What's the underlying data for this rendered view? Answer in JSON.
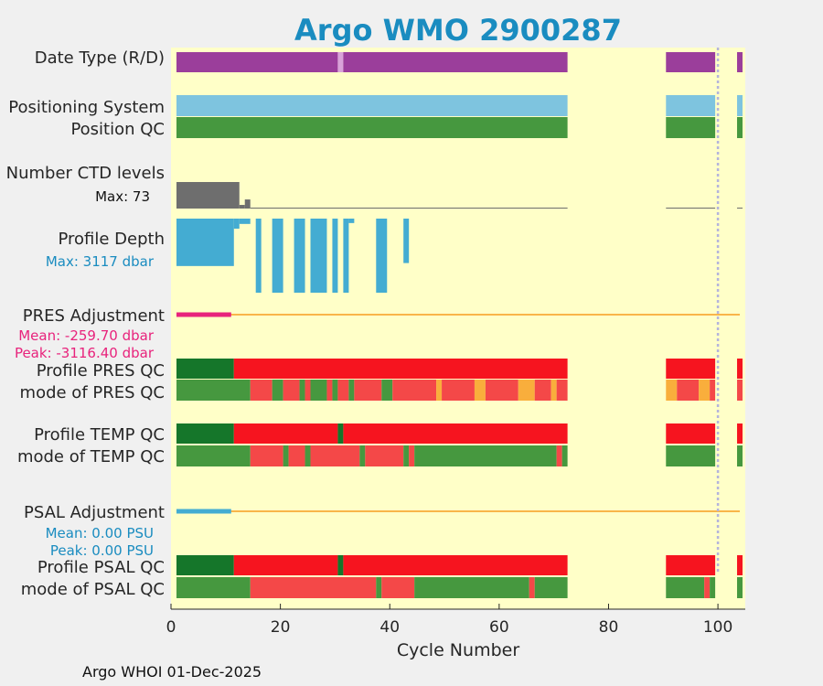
{
  "chart_data": {
    "type": "bar",
    "title": "Argo WMO 2900287",
    "xlabel": "Cycle Number",
    "xlim": [
      0,
      105
    ],
    "xticks": [
      0,
      20,
      40,
      60,
      80,
      100
    ],
    "marker_cycle": 100,
    "colors": {
      "plot_bg": "#ffffc8",
      "realtime": "#9b3e9b",
      "delayed": "#d9a3d9",
      "positioning": "#7ec4df",
      "good": "#46983f",
      "good_dark": "#15762a",
      "bad": "#f6141f",
      "bad_light": "#f44848",
      "probably_good": "#f9ae3c",
      "gray": "#6e6e6e",
      "depth": "#44acd2",
      "pres_adj": "#e8237c",
      "psal_adj": "#44acd2",
      "adj_line": "#f9b54a",
      "marker": "#b4b4dc"
    },
    "rows": [
      {
        "label": "Date Type (R/D)",
        "segments": [
          [
            1,
            30.5,
            "realtime"
          ],
          [
            30.5,
            31.5,
            "delayed"
          ],
          [
            31.5,
            72.5,
            "realtime"
          ],
          [
            90.5,
            99.5,
            "realtime"
          ],
          [
            103.5,
            104.5,
            "realtime"
          ]
        ]
      },
      {
        "label": "Positioning System",
        "segments": [
          [
            1,
            72.5,
            "positioning"
          ],
          [
            90.5,
            99.5,
            "positioning"
          ],
          [
            103.5,
            104.5,
            "positioning"
          ]
        ]
      },
      {
        "label": "Position QC",
        "segments": [
          [
            1,
            72.5,
            "good"
          ],
          [
            90.5,
            99.5,
            "good"
          ],
          [
            103.5,
            104.5,
            "good"
          ]
        ]
      },
      {
        "label": "Profile PRES QC",
        "segments": [
          [
            1,
            11.5,
            "good_dark"
          ],
          [
            11.5,
            72.5,
            "bad"
          ],
          [
            90.5,
            99.5,
            "bad"
          ],
          [
            103.5,
            104.5,
            "bad"
          ]
        ]
      },
      {
        "label": "mode of PRES QC",
        "segments": [
          [
            1,
            14.5,
            "good"
          ],
          [
            14.5,
            18.5,
            "bad_light"
          ],
          [
            18.5,
            20.5,
            "good"
          ],
          [
            20.5,
            23.5,
            "bad_light"
          ],
          [
            23.5,
            24.5,
            "good"
          ],
          [
            24.5,
            25.5,
            "bad_light"
          ],
          [
            25.5,
            28.5,
            "good"
          ],
          [
            28.5,
            29.5,
            "bad_light"
          ],
          [
            29.5,
            30.5,
            "good"
          ],
          [
            30.5,
            32.5,
            "bad_light"
          ],
          [
            32.5,
            33.5,
            "good"
          ],
          [
            33.5,
            38.5,
            "bad_light"
          ],
          [
            38.5,
            40.5,
            "good"
          ],
          [
            40.5,
            48.5,
            "bad_light"
          ],
          [
            48.5,
            49.5,
            "probably_good"
          ],
          [
            49.5,
            55.5,
            "bad_light"
          ],
          [
            55.5,
            57.5,
            "probably_good"
          ],
          [
            57.5,
            63.5,
            "bad_light"
          ],
          [
            63.5,
            66.5,
            "probably_good"
          ],
          [
            66.5,
            69.5,
            "bad_light"
          ],
          [
            69.5,
            70.5,
            "probably_good"
          ],
          [
            70.5,
            72.5,
            "bad_light"
          ],
          [
            90.5,
            92.5,
            "probably_good"
          ],
          [
            92.5,
            96.5,
            "bad_light"
          ],
          [
            96.5,
            98.5,
            "probably_good"
          ],
          [
            98.5,
            99.5,
            "bad_light"
          ],
          [
            103.5,
            104.5,
            "bad_light"
          ]
        ]
      },
      {
        "label": "Profile TEMP QC",
        "segments": [
          [
            1,
            11.5,
            "good_dark"
          ],
          [
            11.5,
            30.5,
            "bad"
          ],
          [
            30.5,
            31.5,
            "good_dark"
          ],
          [
            31.5,
            72.5,
            "bad"
          ],
          [
            90.5,
            99.5,
            "bad"
          ],
          [
            103.5,
            104.5,
            "bad"
          ]
        ]
      },
      {
        "label": "mode of TEMP QC",
        "segments": [
          [
            1,
            14.5,
            "good"
          ],
          [
            14.5,
            20.5,
            "bad_light"
          ],
          [
            20.5,
            21.5,
            "good"
          ],
          [
            21.5,
            24.5,
            "bad_light"
          ],
          [
            24.5,
            25.5,
            "good"
          ],
          [
            25.5,
            34.5,
            "bad_light"
          ],
          [
            34.5,
            35.5,
            "good"
          ],
          [
            35.5,
            42.5,
            "bad_light"
          ],
          [
            42.5,
            43.5,
            "good"
          ],
          [
            43.5,
            44.5,
            "bad_light"
          ],
          [
            44.5,
            70.5,
            "good"
          ],
          [
            70.5,
            71.5,
            "bad_light"
          ],
          [
            71.5,
            72.5,
            "good"
          ],
          [
            90.5,
            99.5,
            "good"
          ],
          [
            103.5,
            104.5,
            "good"
          ]
        ]
      },
      {
        "label": "Profile PSAL QC",
        "segments": [
          [
            1,
            11.5,
            "good_dark"
          ],
          [
            11.5,
            30.5,
            "bad"
          ],
          [
            30.5,
            31.5,
            "good_dark"
          ],
          [
            31.5,
            72.5,
            "bad"
          ],
          [
            90.5,
            99.5,
            "bad"
          ],
          [
            103.5,
            104.5,
            "bad"
          ]
        ]
      },
      {
        "label": "mode of PSAL QC",
        "segments": [
          [
            1,
            14.5,
            "good"
          ],
          [
            14.5,
            37.5,
            "bad_light"
          ],
          [
            37.5,
            38.5,
            "good"
          ],
          [
            38.5,
            44.5,
            "bad_light"
          ],
          [
            44.5,
            65.5,
            "good"
          ],
          [
            65.5,
            66.5,
            "bad_light"
          ],
          [
            66.5,
            72.5,
            "good"
          ],
          [
            90.5,
            97.5,
            "good"
          ],
          [
            97.5,
            98.5,
            "bad_light"
          ],
          [
            98.5,
            99.5,
            "good"
          ],
          [
            103.5,
            104.5,
            "good"
          ]
        ]
      }
    ],
    "ctd_levels": {
      "label": "Number CTD levels",
      "max_label": "Max: 73",
      "max": 73,
      "segments": [
        [
          1,
          12.5,
          73
        ],
        [
          12.5,
          13.5,
          10
        ],
        [
          13.5,
          14.5,
          25
        ],
        [
          14.5,
          72.5,
          1
        ],
        [
          90.5,
          99.5,
          1
        ],
        [
          103.5,
          104.5,
          1
        ]
      ]
    },
    "profile_depth": {
      "label": "Profile Depth",
      "max_label": "Max: 3117 dbar",
      "max_dbar": 3117,
      "segments": [
        [
          1,
          11.5,
          1600
        ],
        [
          11.5,
          12.5,
          340
        ],
        [
          12.5,
          14.5,
          180
        ],
        [
          15.5,
          16.5,
          2500
        ],
        [
          18.5,
          20.5,
          2500
        ],
        [
          22.5,
          24.5,
          2500
        ],
        [
          25.5,
          28.5,
          2500
        ],
        [
          29.5,
          30.5,
          2500
        ],
        [
          31.5,
          32.5,
          2500
        ],
        [
          32.5,
          33.5,
          150
        ],
        [
          37.5,
          39.5,
          2500
        ],
        [
          42.5,
          43.5,
          1500
        ]
      ]
    },
    "pres_adjustment": {
      "label": "PRES Adjustment",
      "mean_label": "Mean: -259.70 dbar",
      "peak_label": "Peak: -3116.40 dbar",
      "nonzero_range": [
        1,
        11
      ],
      "line_range": [
        1,
        104
      ]
    },
    "psal_adjustment": {
      "label": "PSAL Adjustment",
      "mean_label": "Mean: 0.00 PSU",
      "peak_label": "Peak: 0.00 PSU",
      "nonzero_range": [
        1,
        11
      ],
      "line_range": [
        1,
        104
      ]
    },
    "footer": "Argo WHOI 01-Dec-2025"
  }
}
